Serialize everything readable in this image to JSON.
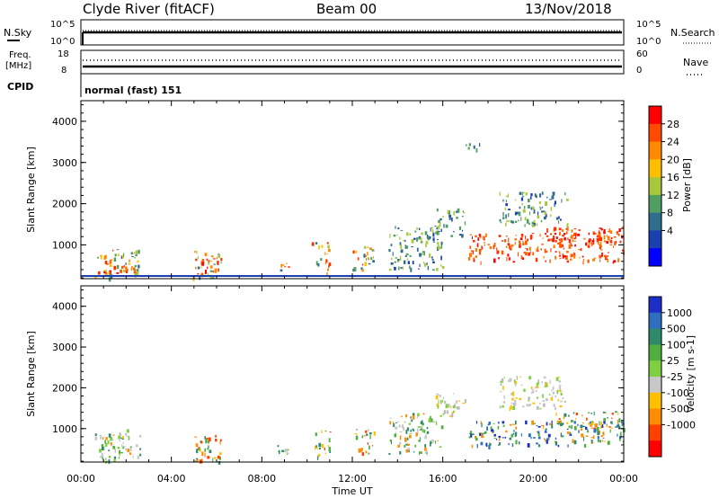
{
  "header": {
    "station": "Clyde River (fitACF)",
    "beam": "Beam 00",
    "date": "13/Nov/2018"
  },
  "strip_nsky": {
    "left_label": "N.Sky",
    "right_label": "N.Search",
    "left_ticks": [
      "10^5",
      "10^0"
    ],
    "right_ticks": [
      "10^5",
      "10^0"
    ]
  },
  "strip_freq": {
    "left_label_1": "Freq.",
    "left_label_2": "[MHz]",
    "right_label": "Nave",
    "left_ticks": [
      "18",
      "8"
    ],
    "right_ticks": [
      "60",
      "0"
    ],
    "cpid_label": "CPID",
    "cpid_text": "normal (fast) 151"
  },
  "chart_data": [
    {
      "type": "heatmap",
      "name": "power",
      "ylabel": "Slant Range [km]",
      "ylim": [
        180,
        4500
      ],
      "y_ticks": [
        1000,
        2000,
        3000,
        4000
      ],
      "x_ticks": [
        "00:00",
        "04:00",
        "08:00",
        "12:00",
        "16:00",
        "20:00",
        "00:00"
      ],
      "colorbar": {
        "label": "Power [dB]",
        "ticks": [
          "28",
          "24",
          "20",
          "16",
          "12",
          "8",
          "4"
        ],
        "colors_top_to_bottom": [
          "#ff0000",
          "#ff4a00",
          "#ff8a00",
          "#ffbf00",
          "#a7c838",
          "#4f9f60",
          "#2f6d8f",
          "#1a3fb0",
          "#0000ff"
        ]
      },
      "echo_regions": [
        {
          "t0": 0.6,
          "t1": 2.6,
          "r0": 200,
          "r1": 900,
          "level": "mid"
        },
        {
          "t0": 1.0,
          "t1": 2.4,
          "r0": 300,
          "r1": 650,
          "level": "high"
        },
        {
          "t0": 4.9,
          "t1": 6.2,
          "r0": 200,
          "r1": 900,
          "level": "mid"
        },
        {
          "t0": 5.3,
          "t1": 5.9,
          "r0": 300,
          "r1": 700,
          "level": "high"
        },
        {
          "t0": 8.6,
          "t1": 9.2,
          "r0": 400,
          "r1": 650,
          "level": "mid"
        },
        {
          "t0": 10.2,
          "t1": 11.0,
          "r0": 300,
          "r1": 1100,
          "level": "mid"
        },
        {
          "t0": 12.0,
          "t1": 13.0,
          "r0": 400,
          "r1": 1000,
          "level": "mid"
        },
        {
          "t0": 13.6,
          "t1": 16.0,
          "r0": 400,
          "r1": 1500,
          "level": "low"
        },
        {
          "t0": 15.6,
          "t1": 17.0,
          "r0": 1200,
          "r1": 1900,
          "level": "low"
        },
        {
          "t0": 17.0,
          "t1": 17.7,
          "r0": 3300,
          "r1": 3500,
          "level": "low"
        },
        {
          "t0": 17.0,
          "t1": 24.0,
          "r0": 600,
          "r1": 1300,
          "level": "high"
        },
        {
          "t0": 20.5,
          "t1": 24.0,
          "r0": 1000,
          "r1": 1450,
          "level": "high"
        },
        {
          "t0": 18.5,
          "t1": 21.5,
          "r0": 1500,
          "r1": 2300,
          "level": "low"
        }
      ]
    },
    {
      "type": "heatmap",
      "name": "velocity",
      "ylabel": "Slant Range [km]",
      "xlabel": "Time UT",
      "ylim": [
        180,
        4500
      ],
      "y_ticks": [
        1000,
        2000,
        3000,
        4000
      ],
      "x_ticks": [
        "00:00",
        "04:00",
        "08:00",
        "12:00",
        "16:00",
        "20:00",
        "00:00"
      ],
      "colorbar": {
        "label": "Velocity [m s-1]",
        "ticks": [
          "1000",
          "500",
          "100",
          "25",
          "-25",
          "-100",
          "-500",
          "-1000"
        ],
        "colors_top_to_bottom": [
          "#1b2fc8",
          "#2f6fc0",
          "#2f8a6a",
          "#4fb040",
          "#7fd040",
          "#c8c8c8",
          "#ffc000",
          "#ff8c00",
          "#ff4000",
          "#ff0000"
        ]
      },
      "echo_regions": [
        {
          "t0": 0.6,
          "t1": 2.6,
          "r0": 200,
          "r1": 900,
          "level": "green"
        },
        {
          "t0": 1.8,
          "t1": 2.6,
          "r0": 800,
          "r1": 1000,
          "level": "grey"
        },
        {
          "t0": 5.0,
          "t1": 6.2,
          "r0": 200,
          "r1": 900,
          "level": "orange"
        },
        {
          "t0": 8.6,
          "t1": 9.2,
          "r0": 400,
          "r1": 650,
          "level": "green"
        },
        {
          "t0": 10.3,
          "t1": 11.0,
          "r0": 300,
          "r1": 1000,
          "level": "orange"
        },
        {
          "t0": 12.0,
          "t1": 13.0,
          "r0": 400,
          "r1": 1000,
          "level": "orange"
        },
        {
          "t0": 13.6,
          "t1": 16.0,
          "r0": 400,
          "r1": 1400,
          "level": "green"
        },
        {
          "t0": 15.6,
          "t1": 17.0,
          "r0": 1300,
          "r1": 1900,
          "level": "grey"
        },
        {
          "t0": 17.0,
          "t1": 24.0,
          "r0": 600,
          "r1": 1200,
          "level": "blue"
        },
        {
          "t0": 21.0,
          "t1": 24.0,
          "r0": 1000,
          "r1": 1450,
          "level": "orange"
        },
        {
          "t0": 18.5,
          "t1": 21.5,
          "r0": 1500,
          "r1": 2300,
          "level": "grey"
        }
      ]
    }
  ]
}
